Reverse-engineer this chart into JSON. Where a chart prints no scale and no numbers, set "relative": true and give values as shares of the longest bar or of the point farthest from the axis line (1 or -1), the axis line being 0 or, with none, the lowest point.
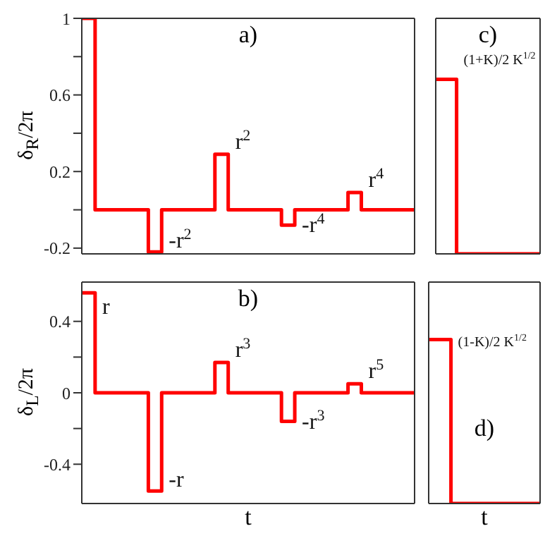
{
  "chart_data": [
    {
      "type": "step",
      "title": "a)",
      "ylabel": "δ$_{R}$/2π",
      "categories": [
        null,
        null,
        null,
        null,
        null,
        null,
        null,
        null,
        null,
        null,
        null,
        null,
        null,
        null,
        null,
        null,
        null,
        null,
        null,
        null,
        null,
        null,
        null,
        null,
        null,
        null
      ],
      "series": [
        {
          "color": "#ff0000",
          "values": [
            1,
            0,
            0,
            0,
            0,
            -0.22,
            0,
            0,
            0,
            0,
            0.29,
            0,
            0,
            0,
            0,
            -0.08,
            0,
            0,
            0,
            0,
            0.09,
            0,
            0,
            0,
            0,
            0
          ]
        }
      ],
      "ylim": [
        -0.23,
        1
      ],
      "yticks": [
        -0.2,
        {
          "value": 0,
          "label": null
        },
        0.2,
        {
          "value": 0.4,
          "label": null
        },
        0.6,
        {
          "value": 0.8,
          "label": null
        },
        1
      ],
      "tick_labels": "y",
      "annotations": [
        "-r$^{2}$",
        "r$^{2}$",
        "-r$^{4}$",
        "r$^{4}$"
      ]
    },
    {
      "type": "step",
      "title": "c)",
      "relative": true,
      "categories": [
        null,
        null,
        null,
        null,
        null,
        null
      ],
      "series": [
        {
          "color": "#ff0000",
          "values": [
            1,
            0,
            0,
            0,
            0,
            0
          ]
        }
      ],
      "tick_labels": false,
      "annotations": [
        "(1+K)/2 K$^{1/2}$"
      ]
    },
    {
      "type": "step",
      "title": "b)",
      "ylabel": "δ$_{L}$/2π",
      "xlabel": "t",
      "categories": [
        null,
        null,
        null,
        null,
        null,
        null,
        null,
        null,
        null,
        null,
        null,
        null,
        null,
        null,
        null,
        null,
        null,
        null,
        null,
        null,
        null,
        null,
        null,
        null,
        null,
        null
      ],
      "series": [
        {
          "color": "#ff0000",
          "values": [
            0.56,
            0,
            0,
            0,
            0,
            -0.55,
            0,
            0,
            0,
            0,
            0.17,
            0,
            0,
            0,
            0,
            -0.16,
            0,
            0,
            0,
            0,
            0.05,
            0,
            0,
            0,
            0,
            0
          ]
        }
      ],
      "ylim": [
        -0.62,
        0.62
      ],
      "yticks": [
        -0.4,
        {
          "value": -0.2,
          "label": null
        },
        0,
        {
          "value": 0.2,
          "label": null
        },
        0.4
      ],
      "tick_labels": "y",
      "annotations": [
        "r",
        "-r",
        "r$^{3}$",
        "-r$^{3}$",
        "r$^{5}$"
      ]
    },
    {
      "type": "step",
      "title": "d)",
      "xlabel": "t",
      "relative": true,
      "categories": [
        null,
        null,
        null,
        null,
        null,
        null
      ],
      "series": [
        {
          "color": "#ff0000",
          "values": [
            1,
            0,
            0,
            0,
            0,
            0
          ]
        }
      ],
      "tick_labels": false,
      "annotations": [
        "(1-K)/2 K$^{1/2}$"
      ]
    }
  ]
}
